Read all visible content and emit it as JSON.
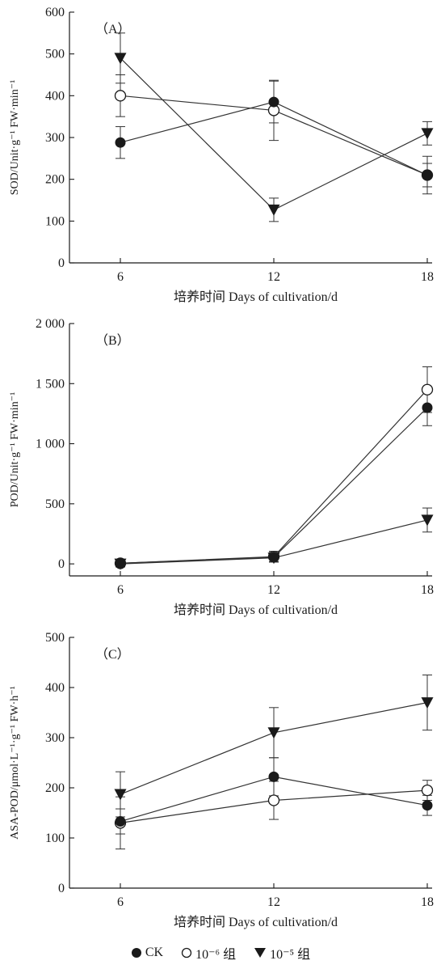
{
  "legend": {
    "items": [
      {
        "label": "CK",
        "marker": "filled-circle"
      },
      {
        "label": "10⁻⁶ 组",
        "marker": "open-circle"
      },
      {
        "label": "10⁻⁵ 组",
        "marker": "filled-triangle-down"
      }
    ]
  },
  "chart_data": [
    {
      "type": "line",
      "panel_label": "（A）",
      "ylabel": "SOD/Unit·g⁻¹ FW·min⁻¹",
      "xlabel": "培养时间 Days of cultivation/d",
      "x": [
        6,
        12,
        18
      ],
      "xticks": [
        "6",
        "12",
        "18"
      ],
      "ylim": [
        0,
        600
      ],
      "yticks": [
        0,
        100,
        200,
        300,
        400,
        500,
        600
      ],
      "ytick_labels": [
        "0",
        "100",
        "200",
        "300",
        "400",
        "500",
        "600"
      ],
      "series": [
        {
          "name": "CK",
          "marker": "filled-circle",
          "values": [
            288,
            385,
            210
          ],
          "errors": [
            38,
            50,
            28
          ]
        },
        {
          "name": "10⁻⁶ 组",
          "marker": "open-circle",
          "values": [
            400,
            365,
            210
          ],
          "errors": [
            50,
            72,
            45
          ]
        },
        {
          "name": "10⁻⁵ 组",
          "marker": "filled-triangle-down",
          "values": [
            490,
            127,
            310
          ],
          "errors": [
            60,
            28,
            28
          ]
        }
      ]
    },
    {
      "type": "line",
      "panel_label": "（B）",
      "ylabel": "POD/Unit·g⁻¹ FW·min⁻¹",
      "xlabel": "培养时间 Days of cultivation/d",
      "x": [
        6,
        12,
        18
      ],
      "xticks": [
        "6",
        "12",
        "18"
      ],
      "ylim": [
        -100,
        2000
      ],
      "yticks": [
        0,
        500,
        1000,
        1500,
        2000
      ],
      "ytick_labels": [
        "0",
        "500",
        "1 000",
        "1 500",
        "2 000"
      ],
      "series": [
        {
          "name": "CK",
          "marker": "filled-circle",
          "values": [
            5,
            55,
            1300
          ],
          "errors": [
            30,
            40,
            150
          ]
        },
        {
          "name": "10⁻⁶ 组",
          "marker": "open-circle",
          "values": [
            5,
            60,
            1450
          ],
          "errors": [
            30,
            45,
            190
          ]
        },
        {
          "name": "10⁻⁵ 组",
          "marker": "filled-triangle-down",
          "values": [
            0,
            50,
            365
          ],
          "errors": [
            20,
            30,
            100
          ]
        }
      ]
    },
    {
      "type": "line",
      "panel_label": "（C）",
      "ylabel": "ASA-POD/μmol·L⁻¹·g⁻¹ FW·h⁻¹",
      "xlabel": "培养时间 Days of cultivation/d",
      "x": [
        6,
        12,
        18
      ],
      "xticks": [
        "6",
        "12",
        "18"
      ],
      "ylim": [
        0,
        500
      ],
      "yticks": [
        0,
        100,
        200,
        300,
        400,
        500
      ],
      "ytick_labels": [
        "0",
        "100",
        "200",
        "300",
        "400",
        "500"
      ],
      "series": [
        {
          "name": "CK",
          "marker": "filled-circle",
          "values": [
            133,
            222,
            165
          ],
          "errors": [
            25,
            38,
            20
          ]
        },
        {
          "name": "10⁻⁶ 组",
          "marker": "open-circle",
          "values": [
            130,
            175,
            195
          ],
          "errors": [
            52,
            38,
            20
          ]
        },
        {
          "name": "10⁻⁵ 组",
          "marker": "filled-triangle-down",
          "values": [
            187,
            310,
            370
          ],
          "errors": [
            45,
            50,
            55
          ]
        }
      ]
    }
  ]
}
